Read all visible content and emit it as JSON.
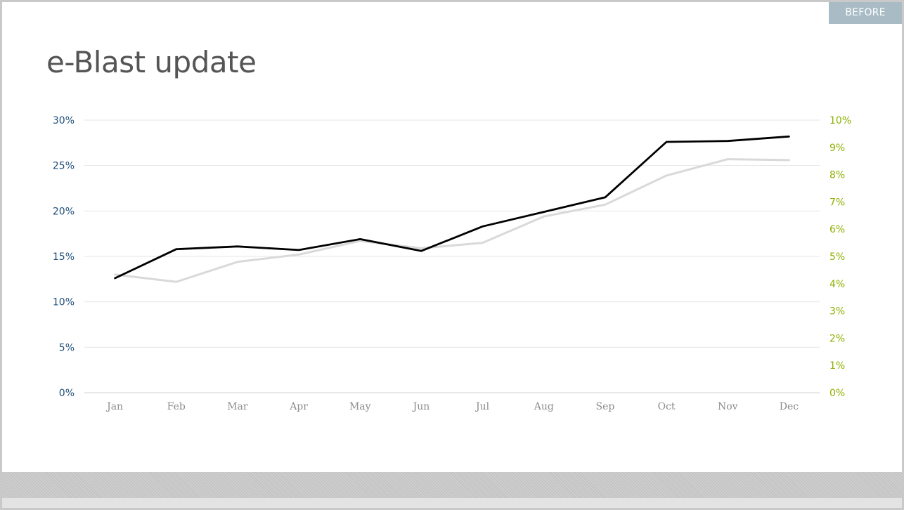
{
  "slide": {
    "badge": "BEFORE",
    "title": "e-Blast update"
  },
  "chart_data": {
    "type": "line",
    "title": "e-Blast update",
    "categories": [
      "Jan",
      "Feb",
      "Mar",
      "Apr",
      "May",
      "Jun",
      "Jul",
      "Aug",
      "Sep",
      "Oct",
      "Nov",
      "Dec"
    ],
    "y_left": {
      "ticks": [
        "0%",
        "5%",
        "10%",
        "15%",
        "20%",
        "25%",
        "30%"
      ],
      "range": [
        0,
        30
      ],
      "color": "#1f4e79"
    },
    "y_right": {
      "ticks": [
        "0%",
        "1%",
        "2%",
        "3%",
        "4%",
        "5%",
        "6%",
        "7%",
        "8%",
        "9%",
        "10%"
      ],
      "range": [
        0,
        10
      ],
      "color": "#8db000"
    },
    "grid": true,
    "legend": "none",
    "series": [
      {
        "axis": "left",
        "color": "#d9d9d9",
        "values": [
          13.0,
          12.2,
          14.4,
          15.2,
          16.7,
          15.9,
          16.5,
          19.4,
          20.7,
          23.9,
          25.7,
          25.6
        ]
      },
      {
        "axis": "left",
        "color": "#000000",
        "values": [
          12.6,
          15.8,
          16.1,
          15.7,
          16.9,
          15.6,
          18.3,
          19.9,
          21.5,
          27.6,
          27.7,
          28.2
        ]
      }
    ]
  }
}
